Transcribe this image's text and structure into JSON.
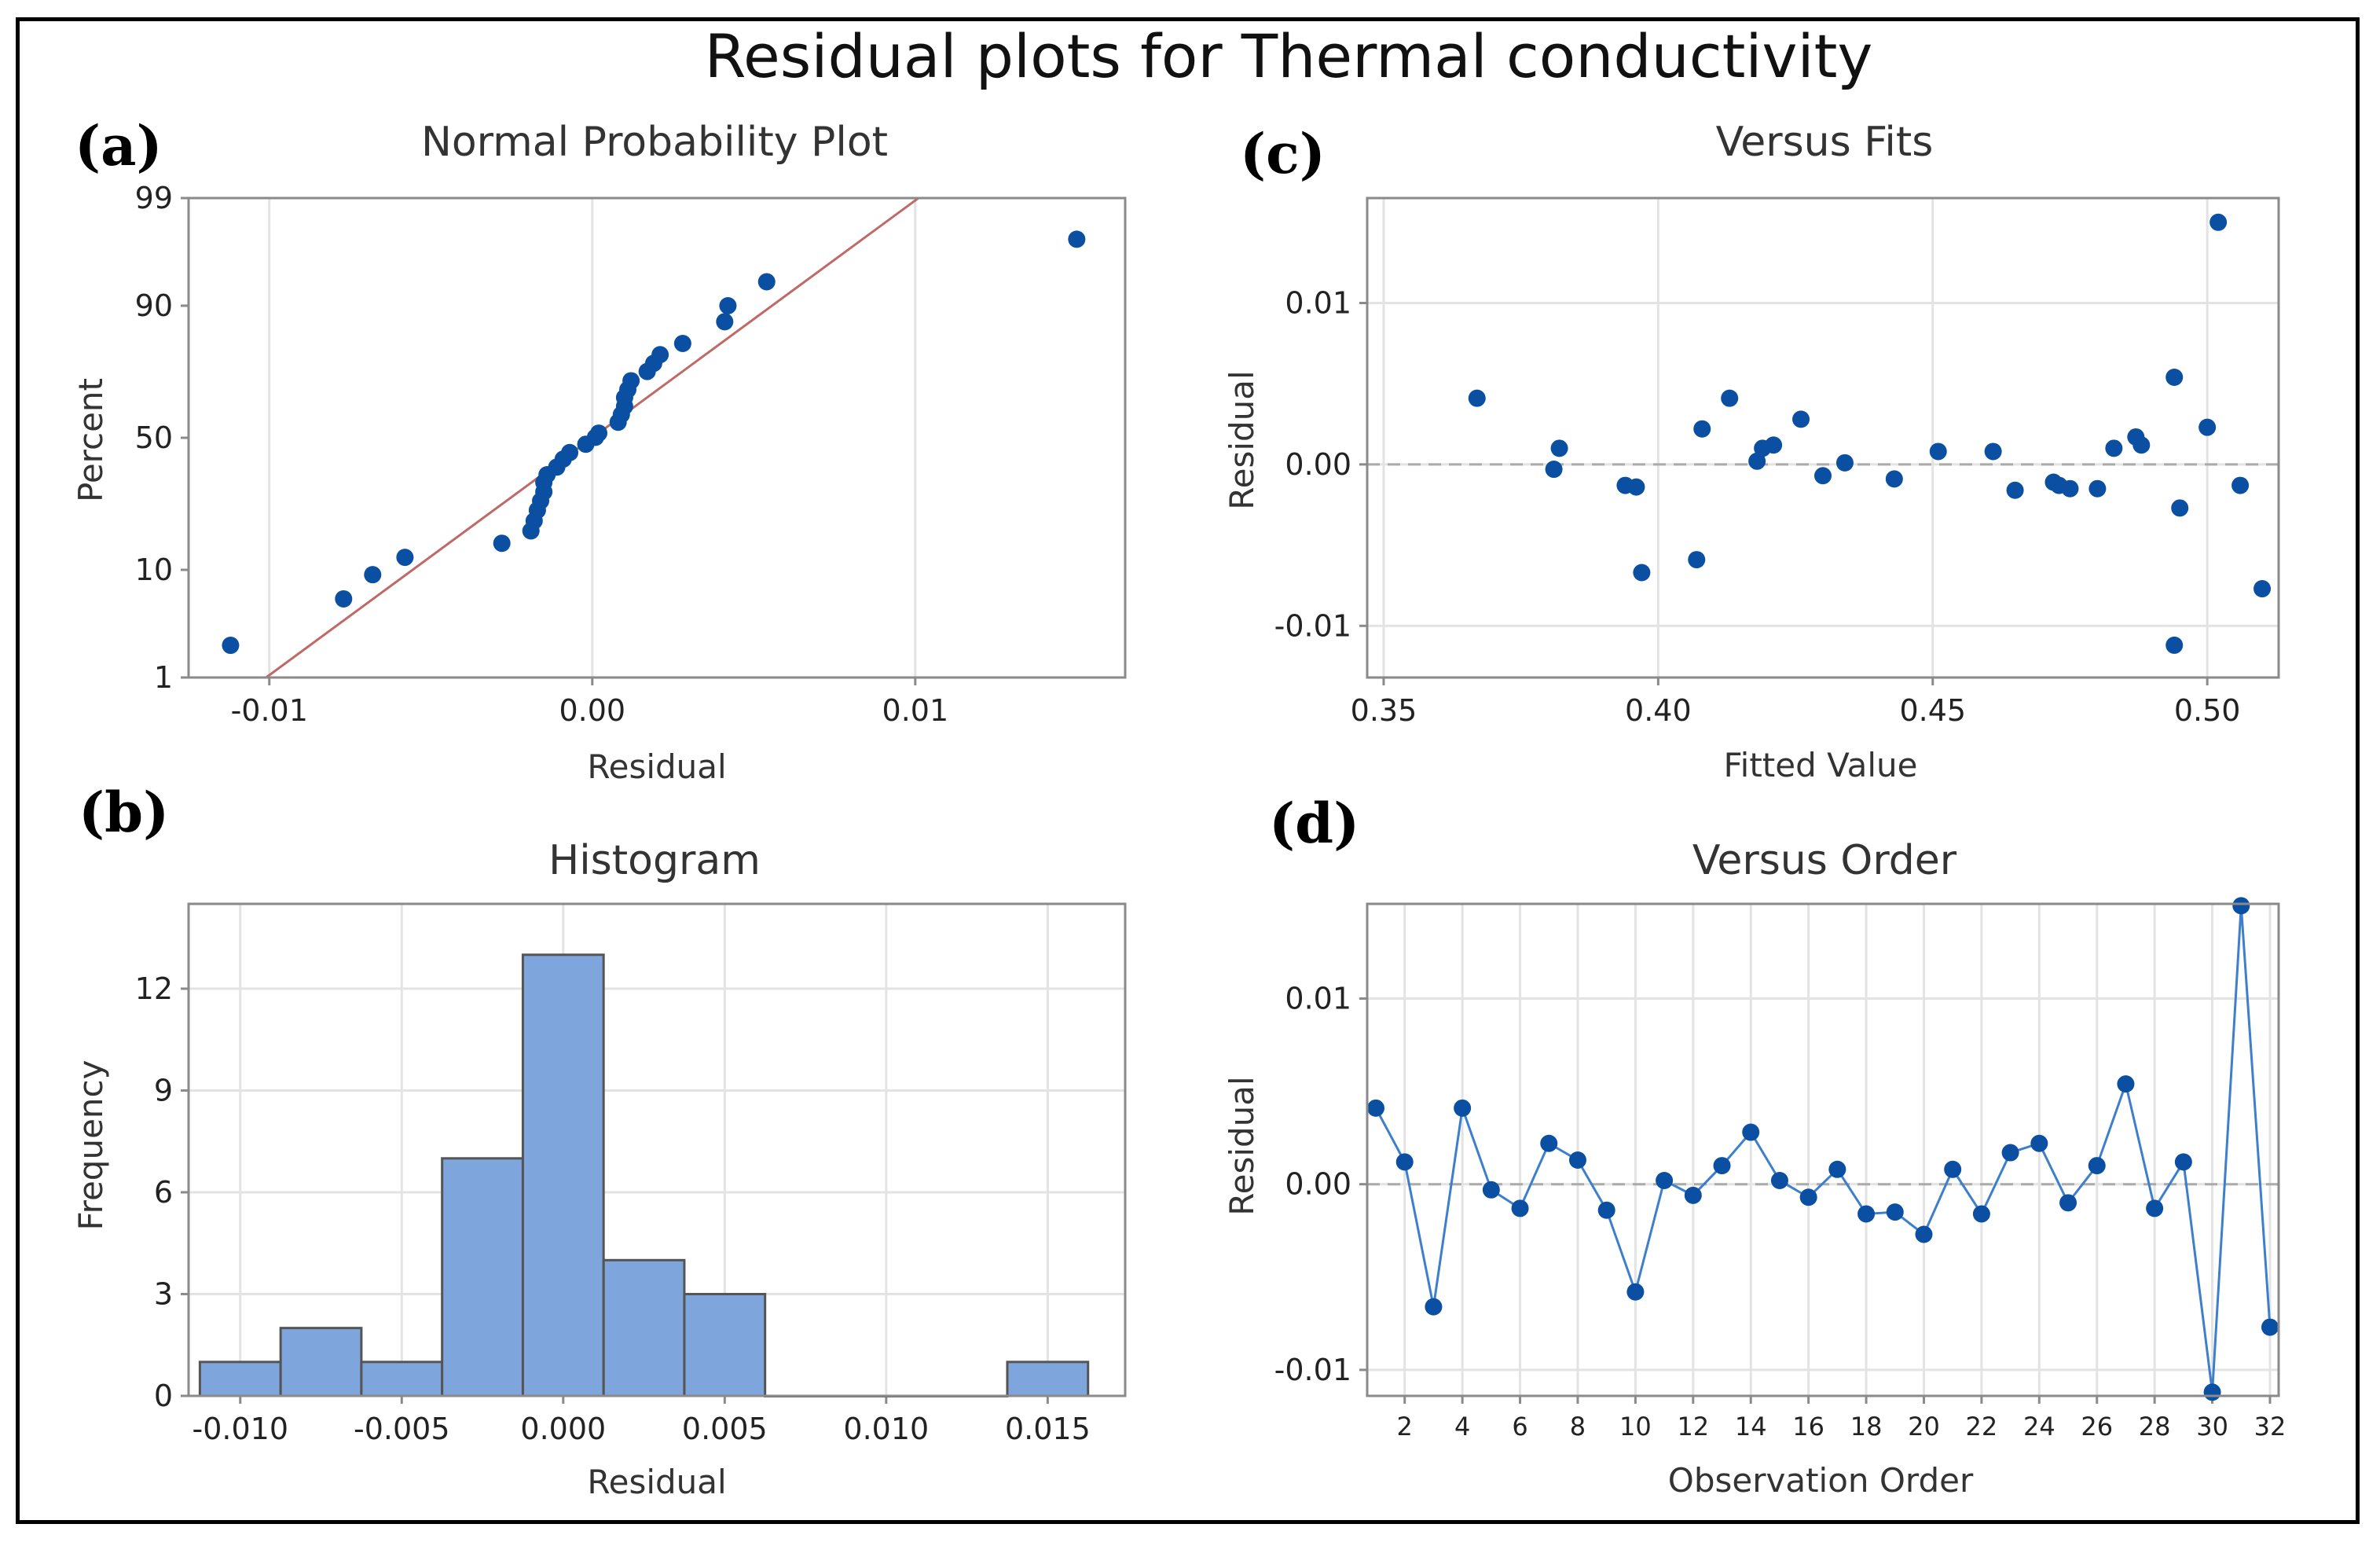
{
  "figure_title": "Residual plots for Thermal conductivity",
  "colors": {
    "point": "#0b4fa3",
    "line": "#3d7fcc",
    "bar_fill": "#7ea6dc",
    "bar_edge": "#555555",
    "fit_line": "#c06a68",
    "grid": "#e3e3e3",
    "frame": "#8a8a8a",
    "zero_line": "#aaaaaa"
  },
  "chart_data": [
    {
      "id": "a",
      "panel_label": "(a)",
      "type": "scatter",
      "title": "Normal Probability Plot",
      "xlabel": "Residual",
      "ylabel": "Percent",
      "xlim": [
        -0.0125,
        0.0165
      ],
      "x_ticks": [
        -0.01,
        0.0,
        0.01
      ],
      "x_tick_labels": [
        "-0.01",
        "0.00",
        "0.01"
      ],
      "y_scale": "normal-probability",
      "y_ticks": [
        1,
        10,
        50,
        90,
        99
      ],
      "y_tick_labels": [
        "1",
        "10",
        "50",
        "90",
        "99"
      ],
      "fit_line": {
        "x": [
          -0.0101,
          0.0101
        ],
        "y": [
          1,
          99
        ]
      },
      "points": [
        [
          -0.0112,
          2.2
        ],
        [
          -0.0077,
          5.9
        ],
        [
          -0.0068,
          9.2
        ],
        [
          -0.0058,
          12.3
        ],
        [
          -0.0028,
          15.3
        ],
        [
          -0.0019,
          18.3
        ],
        [
          -0.0018,
          21.0
        ],
        [
          -0.0017,
          24.1
        ],
        [
          -0.0016,
          27.0
        ],
        [
          -0.0015,
          30.0
        ],
        [
          -0.0015,
          33.2
        ],
        [
          -0.0014,
          36.0
        ],
        [
          -0.0011,
          38.8
        ],
        [
          -0.0009,
          41.8
        ],
        [
          -0.0007,
          44.3
        ],
        [
          -0.0002,
          47.5
        ],
        [
          0.0001,
          50.2
        ],
        [
          0.0002,
          51.8
        ],
        [
          0.0008,
          56.0
        ],
        [
          0.0009,
          58.9
        ],
        [
          0.001,
          62.0
        ],
        [
          0.001,
          65.2
        ],
        [
          0.0011,
          68.0
        ],
        [
          0.0012,
          71.0
        ],
        [
          0.0017,
          74.0
        ],
        [
          0.0019,
          76.5
        ],
        [
          0.0021,
          79.0
        ],
        [
          0.0028,
          82.0
        ],
        [
          0.0041,
          87.0
        ],
        [
          0.0042,
          90.0
        ],
        [
          0.0054,
          93.5
        ],
        [
          0.015,
          97.3
        ]
      ]
    },
    {
      "id": "b",
      "panel_label": "(b)",
      "type": "bar",
      "title": "Histogram",
      "xlabel": "Residual",
      "ylabel": "Frequency",
      "xlim": [
        -0.0116,
        0.0174
      ],
      "ylim": [
        0,
        14.5
      ],
      "x_ticks": [
        -0.01,
        -0.005,
        0.0,
        0.005,
        0.01,
        0.015
      ],
      "x_tick_labels": [
        "-0.010",
        "-0.005",
        "0.000",
        "0.005",
        "0.010",
        "0.015"
      ],
      "y_ticks": [
        0,
        3,
        6,
        9,
        12
      ],
      "y_tick_labels": [
        "0",
        "3",
        "6",
        "9",
        "12"
      ],
      "bin_edges": [
        -0.01125,
        -0.00875,
        -0.00625,
        -0.00375,
        -0.00125,
        0.00125,
        0.00375,
        0.00625,
        0.00875,
        0.01125,
        0.01375,
        0.01625
      ],
      "values": [
        1,
        2,
        1,
        7,
        13,
        4,
        3,
        0,
        0,
        0,
        1
      ]
    },
    {
      "id": "c",
      "panel_label": "(c)",
      "type": "scatter",
      "title": "Versus Fits",
      "xlabel": "Fitted Value",
      "ylabel": "Residual",
      "xlim": [
        0.347,
        0.513
      ],
      "ylim": [
        -0.0132,
        0.0165
      ],
      "x_ticks": [
        0.35,
        0.4,
        0.45,
        0.5
      ],
      "x_tick_labels": [
        "0.35",
        "0.40",
        "0.45",
        "0.50"
      ],
      "y_ticks": [
        -0.01,
        0.0,
        0.01
      ],
      "y_tick_labels": [
        "-0.01",
        "0.00",
        "0.01"
      ],
      "zero_line": 0,
      "points": [
        [
          0.367,
          0.0041
        ],
        [
          0.381,
          -0.0003
        ],
        [
          0.382,
          0.001
        ],
        [
          0.394,
          -0.0013
        ],
        [
          0.396,
          -0.0014
        ],
        [
          0.397,
          -0.0067
        ],
        [
          0.407,
          -0.0059
        ],
        [
          0.408,
          0.0022
        ],
        [
          0.413,
          0.0041
        ],
        [
          0.418,
          0.0002
        ],
        [
          0.419,
          0.001
        ],
        [
          0.421,
          0.0012
        ],
        [
          0.426,
          0.0028
        ],
        [
          0.43,
          -0.0007
        ],
        [
          0.434,
          0.0001
        ],
        [
          0.443,
          -0.0009
        ],
        [
          0.451,
          0.0008
        ],
        [
          0.461,
          0.0008
        ],
        [
          0.465,
          -0.0016
        ],
        [
          0.472,
          -0.0011
        ],
        [
          0.473,
          -0.0013
        ],
        [
          0.475,
          -0.0015
        ],
        [
          0.48,
          -0.0015
        ],
        [
          0.483,
          0.001
        ],
        [
          0.487,
          0.0017
        ],
        [
          0.488,
          0.0012
        ],
        [
          0.494,
          0.0054
        ],
        [
          0.494,
          -0.0112
        ],
        [
          0.495,
          -0.0027
        ],
        [
          0.5,
          0.0023
        ],
        [
          0.502,
          0.015
        ],
        [
          0.506,
          -0.0013
        ],
        [
          0.51,
          -0.0077
        ]
      ]
    },
    {
      "id": "d",
      "panel_label": "(d)",
      "type": "line",
      "title": "Versus Order",
      "xlabel": "Observation Order",
      "ylabel": "Residual",
      "xlim": [
        0.7,
        32.3
      ],
      "ylim": [
        -0.0114,
        0.0151
      ],
      "x_ticks": [
        2,
        4,
        6,
        8,
        10,
        12,
        14,
        16,
        18,
        20,
        22,
        24,
        26,
        28,
        30,
        32
      ],
      "x_tick_labels": [
        "2",
        "4",
        "6",
        "8",
        "10",
        "12",
        "14",
        "16",
        "18",
        "20",
        "22",
        "24",
        "26",
        "28",
        "30",
        "32"
      ],
      "y_ticks": [
        -0.01,
        0.0,
        0.01
      ],
      "y_tick_labels": [
        "-0.01",
        "0.00",
        "0.01"
      ],
      "zero_line": 0,
      "x": [
        1,
        2,
        3,
        4,
        5,
        6,
        7,
        8,
        9,
        10,
        11,
        12,
        13,
        14,
        15,
        16,
        17,
        18,
        19,
        20,
        21,
        22,
        23,
        24,
        25,
        26,
        27,
        28,
        29,
        30,
        31,
        32
      ],
      "values": [
        0.0041,
        0.0012,
        -0.0066,
        0.0041,
        -0.0003,
        -0.0013,
        0.0022,
        0.0013,
        -0.0014,
        -0.0058,
        0.0002,
        -0.0006,
        0.001,
        0.0028,
        0.0002,
        -0.0007,
        0.0008,
        -0.0016,
        -0.0015,
        -0.0027,
        0.0008,
        -0.0016,
        0.0017,
        0.0022,
        -0.001,
        0.001,
        0.0054,
        -0.0013,
        0.0012,
        -0.0112,
        0.015,
        -0.0077
      ]
    }
  ]
}
